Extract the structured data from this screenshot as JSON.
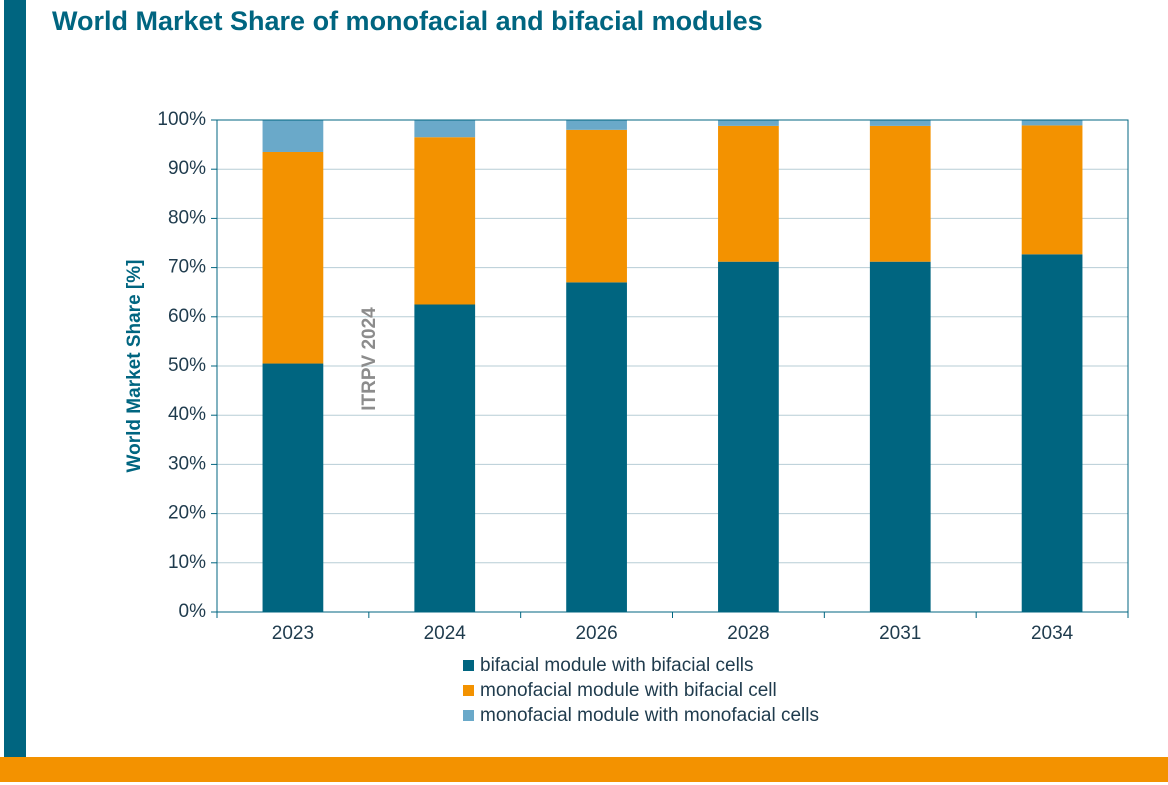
{
  "title": "World Market Share of monofacial and bifacial modules",
  "watermark": "ITRPV 2024",
  "colors": {
    "accent": "#006580",
    "bottom_bar": "#f39200",
    "grid": "#b7cdd6"
  },
  "chart_data": {
    "type": "bar",
    "stacked": true,
    "categories": [
      "2023",
      "2024",
      "2026",
      "2028",
      "2031",
      "2034"
    ],
    "series": [
      {
        "name": "bifacial module with bifacial cells",
        "color": "#006580",
        "values": [
          50.5,
          62.5,
          67,
          71.2,
          71.2,
          72.7
        ]
      },
      {
        "name": "monofacial module with bifacial cell",
        "color": "#f39200",
        "values": [
          43,
          34,
          31,
          27.6,
          27.6,
          26.2
        ]
      },
      {
        "name": "monofacial module with monofacial cells",
        "color": "#6aa9c9",
        "values": [
          6.5,
          3.5,
          2,
          1.2,
          1.2,
          1.1
        ]
      }
    ],
    "ylabel": "World Market Share [%]",
    "xlabel": "",
    "ylim": [
      0,
      100
    ],
    "yticks": [
      "0%",
      "10%",
      "20%",
      "30%",
      "40%",
      "50%",
      "60%",
      "70%",
      "80%",
      "90%",
      "100%"
    ],
    "grid": true,
    "legend_position": "bottom"
  }
}
